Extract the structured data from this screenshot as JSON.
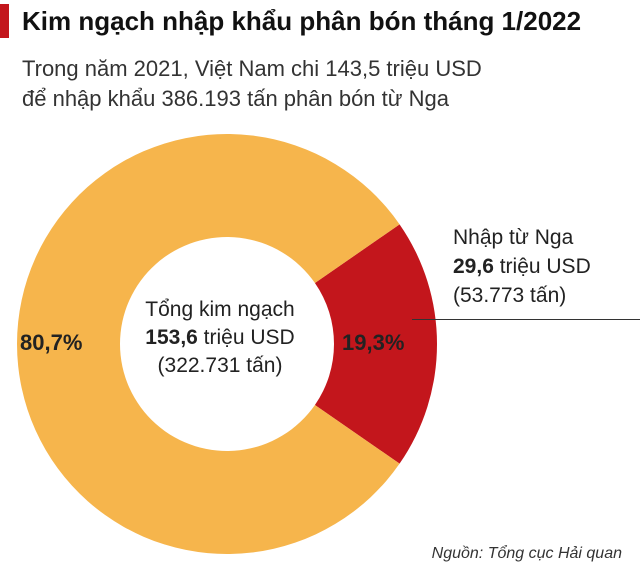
{
  "header": {
    "title": "Kim ngạch nhập khẩu phân bón tháng 1/2022"
  },
  "subtitle": {
    "line1": "Trong năm 2021, Việt Nam chi 143,5 triệu USD",
    "line2": "để nhập khẩu 386.193 tấn phân bón từ Nga"
  },
  "center": {
    "line1": "Tổng kim ngạch",
    "value": "153,6",
    "unit": " triệu USD",
    "line3": "(322.731 tấn)"
  },
  "callout": {
    "line1": "Nhập từ Nga",
    "value": "29,6",
    "unit": " triệu USD",
    "line3": "(53.773 tấn)"
  },
  "source": "Nguồn: Tổng cục Hải quan",
  "chart_data": {
    "type": "pie",
    "style": "donut",
    "total": 153.6,
    "unit": "triệu USD",
    "slices": [
      {
        "label": "",
        "value": 124.0,
        "percent": 80.7,
        "percent_label": "80,7%",
        "color": "#f6b54c"
      },
      {
        "label": "Nhập từ Nga",
        "value": 29.6,
        "percent": 19.3,
        "percent_label": "19,3%",
        "color": "#c3161c"
      }
    ]
  }
}
